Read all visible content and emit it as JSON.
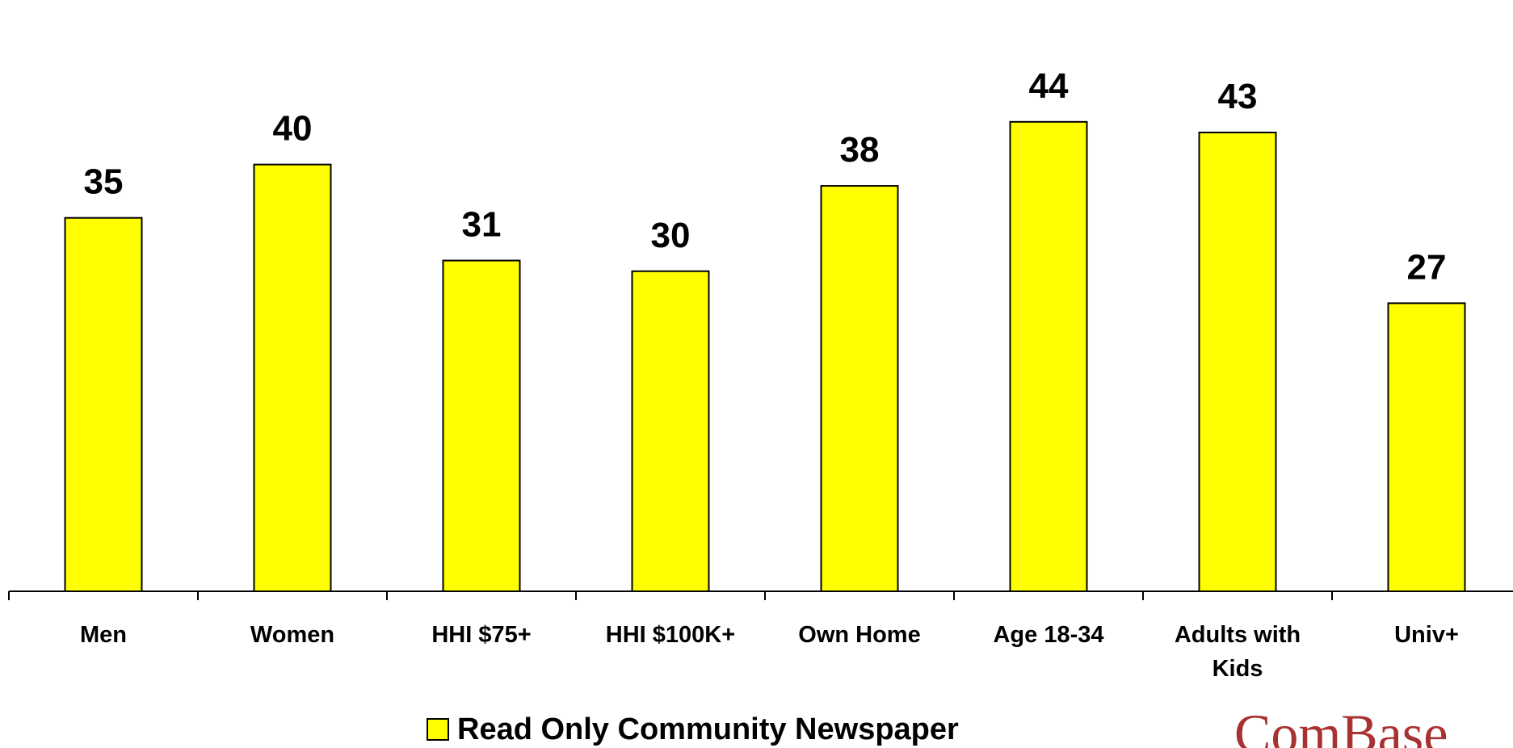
{
  "chart_data": {
    "type": "bar",
    "categories": [
      [
        "Men"
      ],
      [
        "Women"
      ],
      [
        "HHI $75+"
      ],
      [
        "HHI $100K+"
      ],
      [
        "Own Home"
      ],
      [
        "Age 18-34"
      ],
      [
        "Adults with",
        "Kids"
      ],
      [
        "Univ+"
      ]
    ],
    "series": [
      {
        "name": "Read Only Community Newspaper",
        "values": [
          35,
          40,
          31,
          30,
          38,
          44,
          43,
          27
        ],
        "color": "#ffff00"
      }
    ],
    "data_labels": [
      "35",
      "40",
      "31",
      "30",
      "38",
      "44",
      "43",
      "27"
    ],
    "ylim": [
      0,
      48.0
    ],
    "grid": false,
    "legend_position": "bottom-center"
  },
  "legend": {
    "label": "Read Only Community Newspaper"
  },
  "logo": {
    "text": "ComBase"
  }
}
